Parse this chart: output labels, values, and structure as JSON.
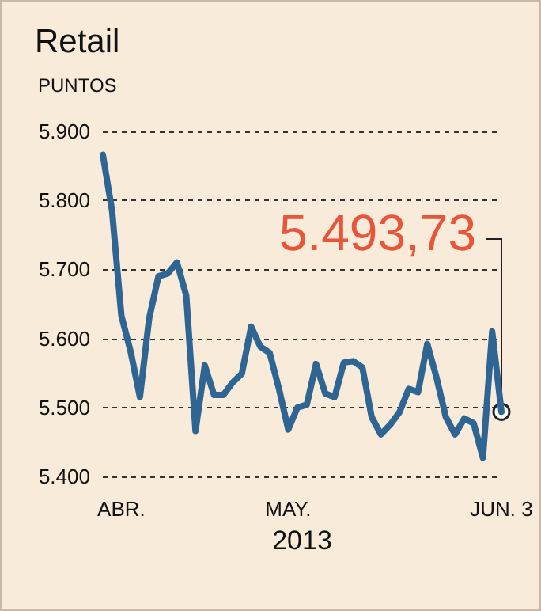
{
  "chart_data": {
    "type": "line",
    "title": "Retail",
    "ylabel": "PUNTOS",
    "xlabel": "2013",
    "categories": [
      null,
      null,
      "ABR.",
      null,
      null,
      null,
      null,
      null,
      null,
      null,
      null,
      null,
      null,
      null,
      null,
      null,
      null,
      null,
      null,
      null,
      "MAY.",
      null,
      null,
      null,
      null,
      null,
      null,
      null,
      null,
      null,
      null,
      null,
      null,
      null,
      null,
      null,
      null,
      null,
      null,
      null,
      null,
      null,
      null,
      "JUN. 3"
    ],
    "series": [
      {
        "color": "#2e6593",
        "values": [
          5866,
          5785,
          5633,
          5581,
          5515,
          5629,
          5690,
          5694,
          5710,
          5662,
          5466,
          5561,
          5518,
          5518,
          5536,
          5549,
          5617,
          5588,
          5579,
          5527,
          5468,
          5500,
          5504,
          5563,
          5520,
          5515,
          5565,
          5567,
          5558,
          5486,
          5461,
          5475,
          5493,
          5527,
          5522,
          5592,
          5543,
          5486,
          5461,
          5484,
          5477,
          5427,
          5610,
          5493.73
        ]
      }
    ],
    "ylim": [
      5400,
      5900
    ],
    "yticks": [
      {
        "value": 5400,
        "label": "5.400"
      },
      {
        "value": 5500,
        "label": "5.500"
      },
      {
        "value": 5600,
        "label": "5.600"
      },
      {
        "value": 5700,
        "label": "5.700"
      },
      {
        "value": 5800,
        "label": "5.800"
      },
      {
        "value": 5900,
        "label": "5.900"
      }
    ],
    "grid": "y",
    "marker": "none",
    "line_style": "solid",
    "annotations": [
      {
        "text": "5.493,73",
        "x": "JUN. 3",
        "y": 5493.73
      }
    ]
  }
}
